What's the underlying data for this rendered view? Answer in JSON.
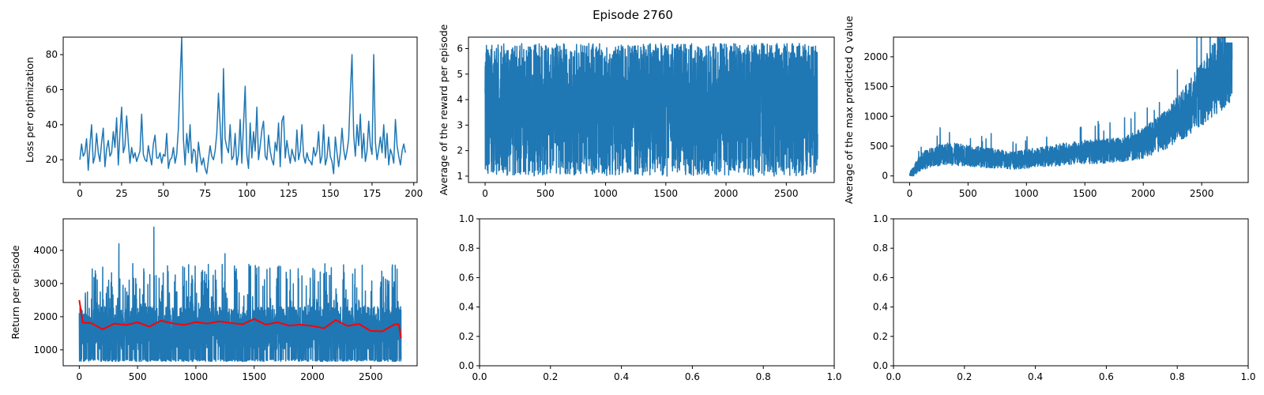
{
  "figure": {
    "suptitle": "Episode 2760"
  },
  "colors": {
    "series": "#1f77b4",
    "moving_average": "#ff0000",
    "frame": "#000000"
  },
  "chart_data": [
    {
      "type": "line",
      "title": "",
      "xlabel": "",
      "ylabel": "Loss per optimization",
      "xlim": [
        -10,
        202
      ],
      "ylim": [
        7,
        90
      ],
      "xticks": [
        0,
        25,
        50,
        75,
        100,
        125,
        150,
        175,
        200
      ],
      "yticks": [
        20,
        40,
        60,
        80
      ],
      "grid": false,
      "series": [
        {
          "color": "#1f77b4",
          "x_start": 0,
          "x_step": 1,
          "y": [
            20,
            29,
            22,
            24,
            32,
            14,
            28,
            40,
            18,
            22,
            35,
            24,
            19,
            30,
            38,
            16,
            26,
            31,
            22,
            24,
            36,
            27,
            44,
            17,
            35,
            50,
            24,
            28,
            45,
            30,
            18,
            27,
            21,
            24,
            19,
            22,
            25,
            46,
            23,
            20,
            19,
            28,
            22,
            17,
            29,
            34,
            21,
            21,
            24,
            18,
            23,
            22,
            35,
            15,
            20,
            21,
            27,
            18,
            23,
            38,
            65,
            90,
            32,
            17,
            35,
            24,
            40,
            18,
            26,
            25,
            13,
            30,
            22,
            17,
            21,
            15,
            12,
            20,
            28,
            22,
            20,
            25,
            35,
            58,
            40,
            18,
            72,
            32,
            27,
            24,
            40,
            20,
            22,
            35,
            17,
            23,
            43,
            18,
            40,
            62,
            23,
            15,
            41,
            21,
            36,
            25,
            50,
            20,
            28,
            37,
            42,
            22,
            20,
            34,
            25,
            20,
            17,
            30,
            25,
            41,
            16,
            42,
            45,
            21,
            31,
            24,
            18,
            26,
            22,
            19,
            37,
            20,
            25,
            40,
            22,
            18,
            24,
            20,
            19,
            17,
            27,
            22,
            25,
            36,
            18,
            22,
            40,
            17,
            21,
            33,
            22,
            19,
            12,
            33,
            24,
            16,
            24,
            38,
            26,
            20,
            25,
            32,
            58,
            80,
            34,
            22,
            40,
            28,
            46,
            21,
            35,
            19,
            25,
            42,
            28,
            23,
            80,
            30,
            20,
            26,
            33,
            24,
            40,
            21,
            35,
            17,
            26,
            23,
            18,
            43,
            28,
            22,
            17,
            25,
            29,
            24
          ]
        }
      ]
    },
    {
      "type": "line",
      "title": "",
      "xlabel": "",
      "ylabel": "Average of the reward per episode",
      "xlim": [
        -138,
        2898
      ],
      "ylim": [
        0.75,
        6.45
      ],
      "xticks": [
        0,
        500,
        1000,
        1500,
        2000,
        2500
      ],
      "yticks": [
        1,
        2,
        3,
        4,
        5,
        6
      ],
      "grid": false,
      "series": [
        {
          "color": "#1f77b4",
          "n_points": 2761,
          "x_range": [
            0,
            2760
          ],
          "y_mean_trend": [
            [
              0,
              3.4
            ],
            [
              500,
              3.6
            ],
            [
              1000,
              3.8
            ],
            [
              1500,
              4.0
            ],
            [
              2000,
              4.2
            ],
            [
              2760,
              4.4
            ]
          ],
          "y_band": [
            1.0,
            6.2
          ]
        }
      ]
    },
    {
      "type": "line",
      "title": "",
      "xlabel": "",
      "ylabel": "Average of the max predicted Q value",
      "xlim": [
        -138,
        2898
      ],
      "ylim": [
        -110,
        2330
      ],
      "xticks": [
        0,
        500,
        1000,
        1500,
        2000,
        2500
      ],
      "yticks": [
        0,
        500,
        1000,
        1500,
        2000
      ],
      "grid": false,
      "series": [
        {
          "color": "#1f77b4",
          "n_points": 2761,
          "x_range": [
            0,
            2760
          ],
          "y_mean_trend": [
            [
              0,
              0
            ],
            [
              100,
              250
            ],
            [
              300,
              380
            ],
            [
              600,
              320
            ],
            [
              900,
              260
            ],
            [
              1200,
              340
            ],
            [
              1500,
              400
            ],
            [
              1800,
              430
            ],
            [
              2000,
              550
            ],
            [
              2200,
              780
            ],
            [
              2400,
              1150
            ],
            [
              2600,
              1600
            ],
            [
              2760,
              2000
            ]
          ]
        }
      ]
    },
    {
      "type": "line",
      "title": "",
      "xlabel": "",
      "ylabel": "Return per episode",
      "xlim": [
        -138,
        2898
      ],
      "ylim": [
        520,
        4950
      ],
      "xticks": [
        0,
        500,
        1000,
        1500,
        2000,
        2500
      ],
      "yticks": [
        1000,
        2000,
        3000,
        4000
      ],
      "grid": false,
      "series": [
        {
          "color": "#1f77b4",
          "n_points": 2761,
          "x_range": [
            0,
            2760
          ],
          "y_floor": 650,
          "y_typical_max": 3000,
          "y_peaks": [
            [
              340,
              4200
            ],
            [
              640,
              4700
            ],
            [
              1250,
              3900
            ],
            [
              2710,
              3550
            ]
          ]
        },
        {
          "color": "#ff0000",
          "x": [
            0,
            30,
            100,
            200,
            300,
            400,
            500,
            600,
            700,
            800,
            900,
            1000,
            1100,
            1200,
            1300,
            1400,
            1500,
            1600,
            1700,
            1800,
            1900,
            2000,
            2100,
            2200,
            2300,
            2400,
            2500,
            2600,
            2700,
            2740,
            2760
          ],
          "y": [
            2500,
            1820,
            1810,
            1620,
            1790,
            1750,
            1830,
            1700,
            1880,
            1800,
            1750,
            1840,
            1790,
            1860,
            1810,
            1770,
            1930,
            1760,
            1830,
            1730,
            1760,
            1720,
            1650,
            1900,
            1720,
            1780,
            1570,
            1560,
            1760,
            1780,
            1350
          ]
        }
      ]
    },
    {
      "type": "line",
      "title": "",
      "xlabel": "",
      "ylabel": "",
      "xlim": [
        0,
        1
      ],
      "ylim": [
        0,
        1
      ],
      "xticks": [
        0.0,
        0.2,
        0.4,
        0.6,
        0.8,
        1.0
      ],
      "yticks": [
        0.0,
        0.2,
        0.4,
        0.6,
        0.8,
        1.0
      ],
      "grid": false,
      "series": []
    },
    {
      "type": "line",
      "title": "",
      "xlabel": "",
      "ylabel": "",
      "xlim": [
        0,
        1
      ],
      "ylim": [
        0,
        1
      ],
      "xticks": [
        0.0,
        0.2,
        0.4,
        0.6,
        0.8,
        1.0
      ],
      "yticks": [
        0.0,
        0.2,
        0.4,
        0.6,
        0.8,
        1.0
      ],
      "grid": false,
      "series": []
    }
  ]
}
